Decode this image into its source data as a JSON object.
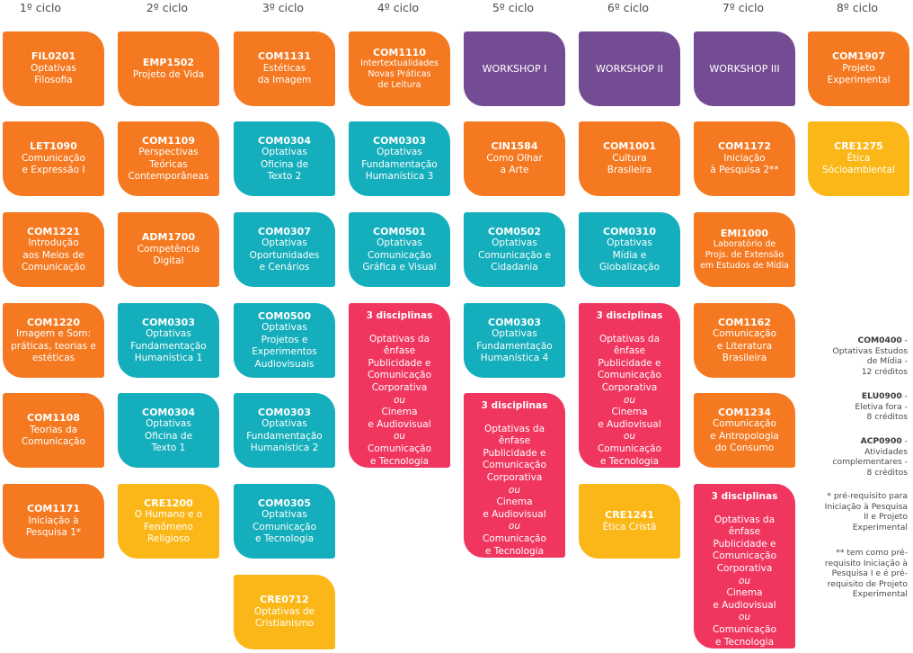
{
  "cycles": [
    "1º ciclo",
    "2º ciclo",
    "3º ciclo",
    "4º ciclo",
    "5º ciclo",
    "6º ciclo",
    "7º ciclo",
    "8º ciclo"
  ],
  "colors": {
    "orange": "#f47920",
    "teal": "#14aebc",
    "purple": "#744c93",
    "pink": "#f0365f",
    "yellow": "#fbb717"
  },
  "cards": {
    "c1_1": {
      "code": "FIL0201",
      "desc": "Optativas\nFilosofia"
    },
    "c1_2": {
      "code": "LET1090",
      "desc": "Comunicação\ne Expressão I"
    },
    "c1_3": {
      "code": "COM1221",
      "desc": "Introdução\naos Meios de\nComunicação"
    },
    "c1_4": {
      "code": "COM1220",
      "desc": "Imagem e Som:\npráticas, teorias e\nestéticas"
    },
    "c1_5": {
      "code": "COM1108",
      "desc": "Teorias da\nComunicação"
    },
    "c1_6": {
      "code": "COM1171",
      "desc": "Iniciação à\nPesquisa 1*"
    },
    "c2_1": {
      "code": "EMP1502",
      "desc": "Projeto de Vida"
    },
    "c2_2": {
      "code": "COM1109",
      "desc": "Perspectivas\nTeóricas\nContemporâneas"
    },
    "c2_3": {
      "code": "ADM1700",
      "desc": "Competência\nDigital"
    },
    "c2_4": {
      "code": "COM0303",
      "desc": "Optativas\nFundamentação\nHumanística 1"
    },
    "c2_5": {
      "code": "COM0304",
      "desc": "Optativas\nOficina de\nTexto 1"
    },
    "c2_6": {
      "code": "CRE1200",
      "desc": "O Humano e o\nFenômeno\nReligioso"
    },
    "c3_1": {
      "code": "COM1131",
      "desc": "Estéticas\nda Imagem"
    },
    "c3_2": {
      "code": "COM0304",
      "desc": "Optativas\nOficina de\nTexto 2"
    },
    "c3_3": {
      "code": "COM0307",
      "desc": "Optativas\nOportunidades\ne Cenários"
    },
    "c3_4": {
      "code": "COM0500",
      "desc": "Optativas\nProjetos e\nExperimentos\nAudiovisuais"
    },
    "c3_5": {
      "code": "COM0303",
      "desc": "Optativas\nFundamentação\nHumanística 2"
    },
    "c3_6": {
      "code": "COM0305",
      "desc": "Optativas\nComunicação\ne Tecnologia"
    },
    "c3_7": {
      "code": "CRE0712",
      "desc": "Optativas de\nCristianismo"
    },
    "c4_1": {
      "code": "COM1110",
      "desc": "Intertextualidades\nNovas Práticas\nde Leitura"
    },
    "c4_2": {
      "code": "COM0303",
      "desc": "Optativas\nFundamentação\nHumanística 3"
    },
    "c4_3": {
      "code": "COM0501",
      "desc": "Optativas\nComunicação\nGráfica e Visual"
    },
    "c5_1": {
      "code": "",
      "desc": "WORKSHOP I"
    },
    "c5_2": {
      "code": "CIN1584",
      "desc": "Como Olhar\na Arte"
    },
    "c5_3": {
      "code": "COM0502",
      "desc": "Optativas\nComunicação e\nCidadania"
    },
    "c5_4": {
      "code": "COM0303",
      "desc": "Optativas\nFundamentação\nHumanística 4"
    },
    "c6_1": {
      "code": "",
      "desc": "WORKSHOP II"
    },
    "c6_2": {
      "code": "COM1001",
      "desc": "Cultura\nBrasileira"
    },
    "c6_3": {
      "code": "COM0310",
      "desc": "Optativas\nMídia e\nGlobalização"
    },
    "c6_4": {
      "code": "CRE1241",
      "desc": "Ética Cristã"
    },
    "c7_1": {
      "code": "",
      "desc": "WORKSHOP III"
    },
    "c7_2": {
      "code": "COM1172",
      "desc": "Iniciação\nà Pesquisa 2**"
    },
    "c7_3": {
      "code": "EMI1000",
      "desc": "Laboratório de\nProjs. de Extensão\nem Estudos de Mídia"
    },
    "c7_4": {
      "code": "COM1162",
      "desc": "Comunicação\ne Literatura\nBrasileira"
    },
    "c7_5": {
      "code": "COM1234",
      "desc": "Comunicação\ne Antropologia\ndo Consumo"
    },
    "c8_1": {
      "code": "COM1907",
      "desc": "Projeto\nExperimental"
    },
    "c8_2": {
      "code": "CRE1275",
      "desc": "Ética\nSócioambiental"
    }
  },
  "electives_block": {
    "head": "3 disciplinas",
    "line1": "Optativas da ênfase\nPublicidade e\nComunicação\nCorporativa",
    "or": "ou",
    "line2": "Cinema\ne Audiovisual",
    "line3": "Comunicação\ne Tecnologia"
  },
  "notes": {
    "n1_code": "COM0400",
    "n1_text": "Optativas Estudos\nde Mídia -\n12 créditos",
    "n2_code": "ELU0900",
    "n2_text": "Eletiva fora -\n8 créditos",
    "n3_code": "ACP0900",
    "n3_text": "Atividades\ncomplementares -\n8 créditos",
    "n4": "* pré-requisito para\nIniciação à Pesquisa\nII e Projeto\nExperimental",
    "n5": "** tem como pré-\nrequisito Iniciação à\nPesquisa I e é pré-\nrequisito de Projeto\nExperimental"
  }
}
